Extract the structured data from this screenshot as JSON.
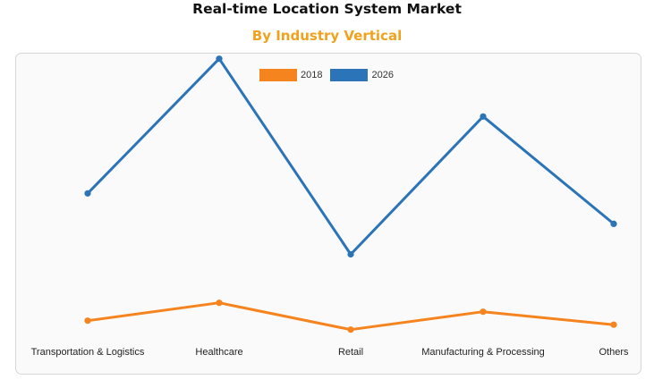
{
  "header": {
    "title": "Real-time Location System Market",
    "subtitle": "By Industry Vertical",
    "subtitle_color": "#f0a21e"
  },
  "chart_data": {
    "type": "line",
    "title": "",
    "xlabel": "",
    "ylabel": "",
    "categories": [
      "Transportation & Logistics",
      "Healthcare",
      "Retail",
      "Manufacturing & Processing",
      "Others"
    ],
    "series": [
      {
        "name": "2018",
        "color": "#f5841f",
        "values": [
          0.82,
          1.26,
          0.6,
          1.04,
          0.72
        ]
      },
      {
        "name": "2026",
        "color": "#2b74b8",
        "values": [
          3.95,
          7.26,
          2.45,
          5.84,
          3.2
        ]
      }
    ],
    "ylim": [
      0,
      8
    ],
    "grid": false,
    "legend_position": "top-center"
  }
}
